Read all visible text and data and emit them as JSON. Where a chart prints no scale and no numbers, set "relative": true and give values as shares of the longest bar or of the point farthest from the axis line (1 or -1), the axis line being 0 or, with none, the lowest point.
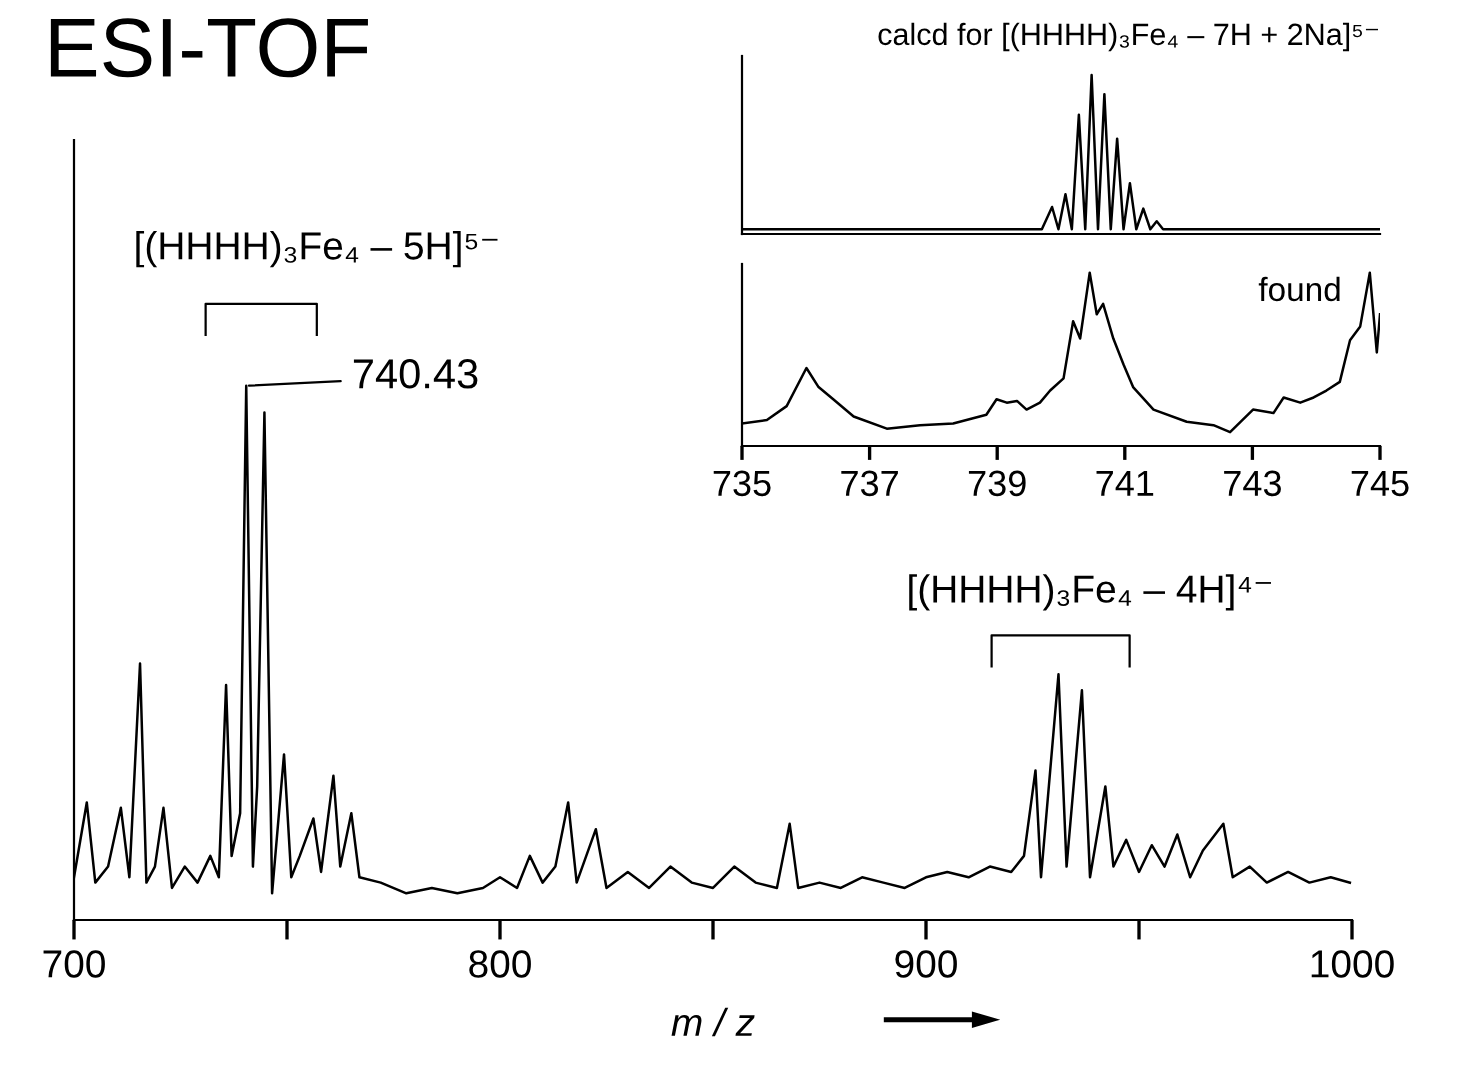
{
  "chart_data": [
    {
      "type": "line",
      "title": "ESI-TOF",
      "xlabel": "m / z",
      "relative": true,
      "color": "#000000",
      "xlim": [
        700,
        1000
      ],
      "xticks": [
        700,
        {
          "value": 750,
          "label": null
        },
        800,
        {
          "value": 850,
          "label": null
        },
        900,
        {
          "value": 950,
          "label": null
        },
        1000
      ],
      "grid": false,
      "legend": false,
      "annotations": [
        "[(HHHH)₃Fe₄ – 5H]⁵⁻",
        {
          "text": "740.43",
          "x": 740.43,
          "y": 1.0
        },
        "[(HHHH)₃Fe₄ – 4H]⁴⁻"
      ],
      "x": [
        700,
        703,
        705,
        708,
        711,
        713,
        715.5,
        717,
        719,
        721,
        723,
        726,
        729,
        732,
        734,
        735.7,
        737,
        739,
        740.43,
        742,
        743,
        744.7,
        746.5,
        749.3,
        751,
        753,
        756.2,
        758,
        760.9,
        762.5,
        765.1,
        767,
        772,
        778,
        784,
        790,
        796,
        800,
        804,
        807,
        810,
        813,
        816,
        818,
        822.5,
        825,
        830,
        835,
        840,
        845,
        850,
        855,
        860,
        865,
        868,
        870,
        875,
        880,
        885,
        890,
        895,
        900,
        905,
        910,
        915,
        920,
        923,
        925.7,
        927,
        931.1,
        933,
        936.6,
        938.5,
        942.1,
        944,
        947,
        950,
        953,
        956,
        959,
        962,
        965,
        969.8,
        972,
        976,
        980,
        985,
        990,
        995,
        999.5
      ],
      "values": [
        0.08,
        0.22,
        0.07,
        0.1,
        0.21,
        0.08,
        0.48,
        0.07,
        0.1,
        0.21,
        0.06,
        0.1,
        0.07,
        0.12,
        0.08,
        0.44,
        0.12,
        0.2,
        1.0,
        0.1,
        0.25,
        0.95,
        0.05,
        0.31,
        0.08,
        0.12,
        0.19,
        0.09,
        0.27,
        0.1,
        0.2,
        0.08,
        0.07,
        0.05,
        0.06,
        0.05,
        0.06,
        0.08,
        0.06,
        0.12,
        0.07,
        0.1,
        0.22,
        0.07,
        0.17,
        0.06,
        0.09,
        0.06,
        0.1,
        0.07,
        0.06,
        0.1,
        0.07,
        0.06,
        0.18,
        0.06,
        0.07,
        0.06,
        0.08,
        0.07,
        0.06,
        0.08,
        0.09,
        0.08,
        0.1,
        0.09,
        0.12,
        0.28,
        0.08,
        0.46,
        0.1,
        0.43,
        0.08,
        0.25,
        0.1,
        0.15,
        0.09,
        0.14,
        0.1,
        0.16,
        0.08,
        0.13,
        0.18,
        0.08,
        0.1,
        0.07,
        0.09,
        0.07,
        0.08,
        0.07
      ]
    },
    {
      "type": "line",
      "title": "calcd for [(HHHH)₃Fe₄ – 7H + 2Na]⁵⁻",
      "relative": true,
      "color": "#000000",
      "xlim": [
        735,
        745
      ],
      "xticks": [
        735,
        737,
        739,
        741,
        743,
        745
      ],
      "tick_labels": false,
      "grid": false,
      "legend": false,
      "x": [
        735,
        739.7,
        739.86,
        739.96,
        740.07,
        740.17,
        740.28,
        740.38,
        740.48,
        740.58,
        740.68,
        740.78,
        740.88,
        740.98,
        741.08,
        741.18,
        741.29,
        741.4,
        741.5,
        741.6,
        745
      ],
      "values": [
        0.03,
        0.03,
        0.17,
        0.03,
        0.25,
        0.03,
        0.75,
        0.03,
        1.0,
        0.03,
        0.88,
        0.03,
        0.6,
        0.03,
        0.32,
        0.03,
        0.16,
        0.03,
        0.08,
        0.03,
        0.03
      ]
    },
    {
      "type": "line",
      "relative": true,
      "color": "#000000",
      "xlim": [
        735,
        745
      ],
      "xticks": [
        735,
        737,
        739,
        741,
        743,
        745
      ],
      "grid": false,
      "legend": false,
      "annotations": [
        "found"
      ],
      "x": [
        735.0,
        735.39,
        735.7,
        736.01,
        736.2,
        736.43,
        736.75,
        737.27,
        737.79,
        738.31,
        738.83,
        738.99,
        739.15,
        739.31,
        739.46,
        739.67,
        739.83,
        740.04,
        740.19,
        740.3,
        740.45,
        740.56,
        740.66,
        740.82,
        740.98,
        741.13,
        741.45,
        741.97,
        742.39,
        742.65,
        743.01,
        743.33,
        743.49,
        743.75,
        743.96,
        744.16,
        744.37,
        744.53,
        744.69,
        744.84,
        744.95,
        745.0
      ],
      "values": [
        0.13,
        0.15,
        0.23,
        0.45,
        0.34,
        0.27,
        0.17,
        0.1,
        0.12,
        0.13,
        0.18,
        0.27,
        0.25,
        0.26,
        0.21,
        0.25,
        0.32,
        0.39,
        0.72,
        0.62,
        1.0,
        0.76,
        0.82,
        0.62,
        0.47,
        0.34,
        0.21,
        0.14,
        0.12,
        0.08,
        0.21,
        0.19,
        0.28,
        0.25,
        0.28,
        0.32,
        0.37,
        0.61,
        0.69,
        1.0,
        0.54,
        0.76
      ]
    }
  ]
}
